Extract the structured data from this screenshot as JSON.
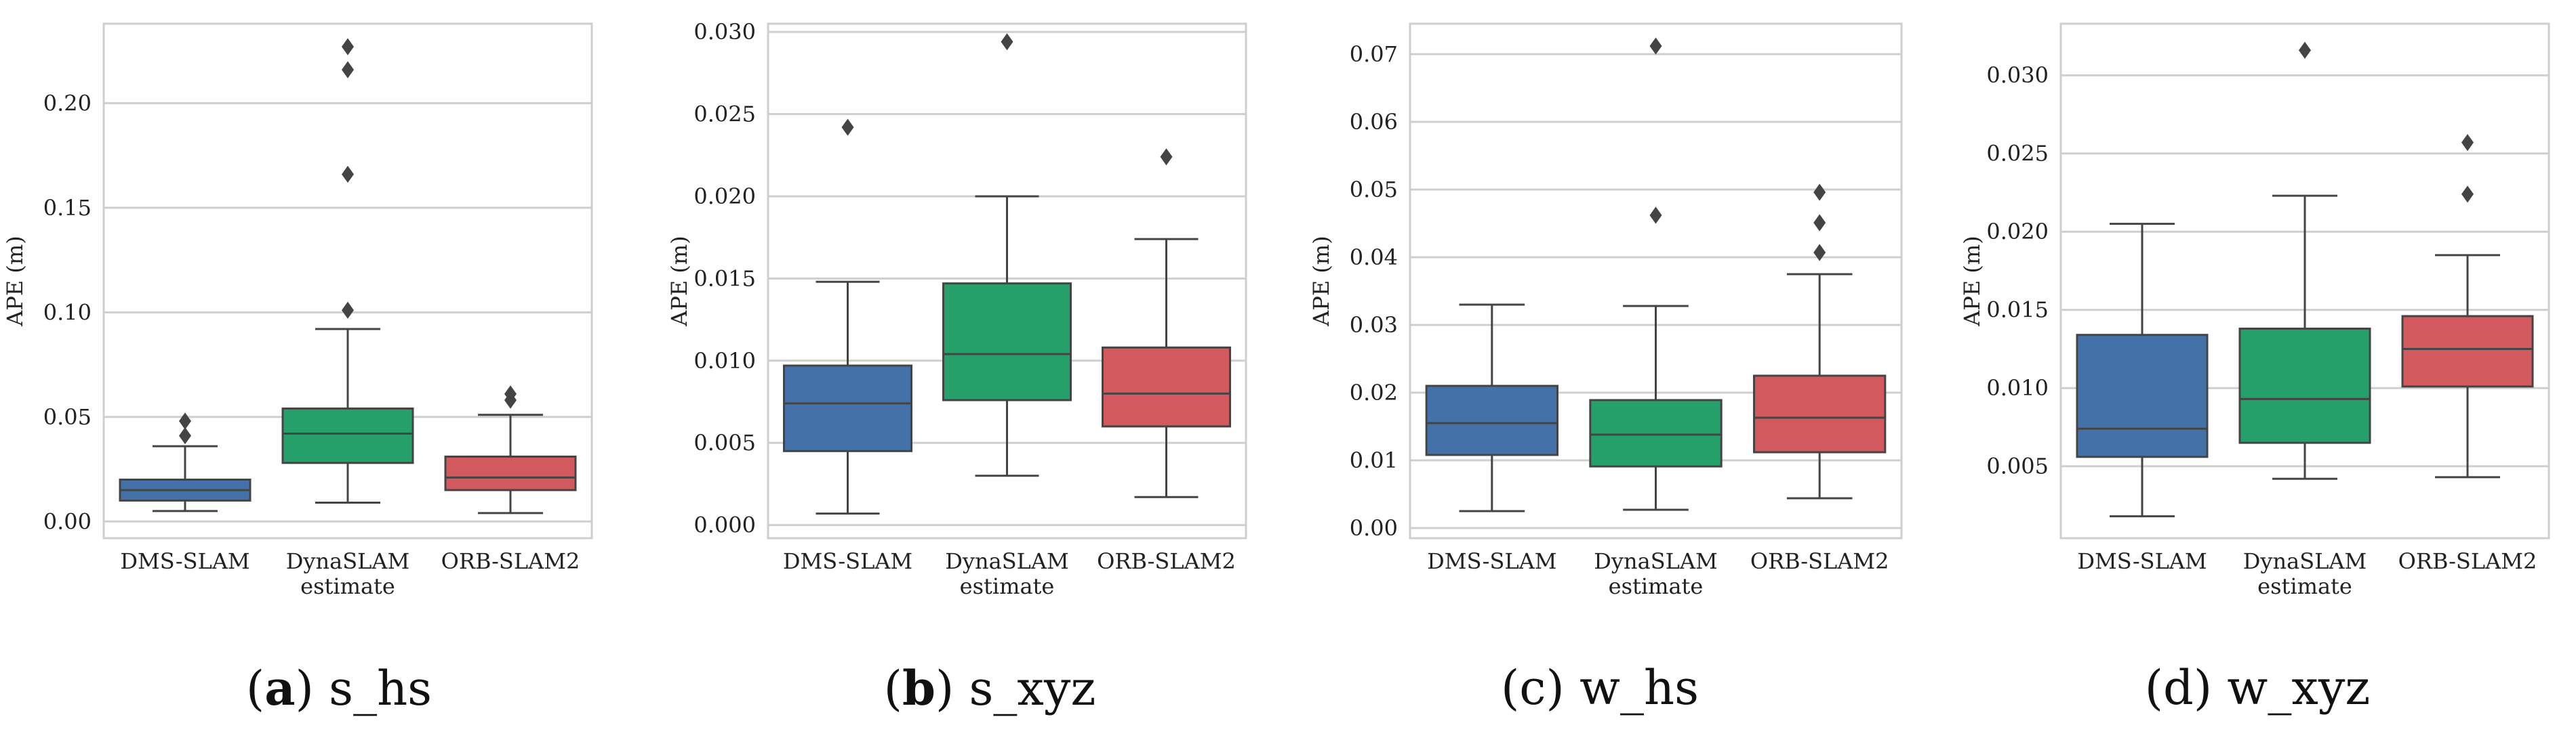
{
  "colors": {
    "DMS-SLAM": "#4472a8",
    "DynaSLAM": "#26a06a",
    "ORB-SLAM2": "#d25a5e"
  },
  "captions": [
    {
      "letter": "a",
      "text": "s_hs",
      "bold": true
    },
    {
      "letter": "b",
      "text": "s_xyz",
      "bold": true
    },
    {
      "letter": "c",
      "text": "w_hs",
      "bold": false
    },
    {
      "letter": "d",
      "text": "w_xyz",
      "bold": false
    }
  ],
  "chart_data": [
    {
      "type": "box",
      "ylabel": "APE (m)",
      "xlabel": "estimate",
      "categories": [
        "DMS-SLAM",
        "DynaSLAM",
        "ORB-SLAM2"
      ],
      "ylim": [
        -0.008,
        0.238
      ],
      "yticks": [
        0.0,
        0.05,
        0.1,
        0.15,
        0.2
      ],
      "ytick_labels": [
        "0.00",
        "0.05",
        "0.10",
        "0.15",
        "0.20"
      ],
      "grid": true,
      "boxes": [
        {
          "name": "DMS-SLAM",
          "whisker_low": 0.005,
          "q1": 0.01,
          "median": 0.015,
          "q3": 0.02,
          "whisker_high": 0.036,
          "outliers": [
            0.041,
            0.048
          ]
        },
        {
          "name": "DynaSLAM",
          "whisker_low": 0.009,
          "q1": 0.028,
          "median": 0.042,
          "q3": 0.054,
          "whisker_high": 0.092,
          "outliers": [
            0.101,
            0.166,
            0.216,
            0.227
          ]
        },
        {
          "name": "ORB-SLAM2",
          "whisker_low": 0.004,
          "q1": 0.015,
          "median": 0.021,
          "q3": 0.031,
          "whisker_high": 0.051,
          "outliers": [
            0.058,
            0.061
          ]
        }
      ]
    },
    {
      "type": "box",
      "ylabel": "APE (m)",
      "xlabel": "estimate",
      "categories": [
        "DMS-SLAM",
        "DynaSLAM",
        "ORB-SLAM2"
      ],
      "ylim": [
        -0.0008,
        0.0305
      ],
      "yticks": [
        0.0,
        0.005,
        0.01,
        0.015,
        0.02,
        0.025,
        0.03
      ],
      "ytick_labels": [
        "0.000",
        "0.005",
        "0.010",
        "0.015",
        "0.020",
        "0.025",
        "0.030"
      ],
      "grid": true,
      "boxes": [
        {
          "name": "DMS-SLAM",
          "whisker_low": 0.0007,
          "q1": 0.0045,
          "median": 0.0074,
          "q3": 0.0097,
          "whisker_high": 0.0148,
          "outliers": [
            0.0242
          ]
        },
        {
          "name": "DynaSLAM",
          "whisker_low": 0.003,
          "q1": 0.0076,
          "median": 0.0104,
          "q3": 0.0147,
          "whisker_high": 0.02,
          "outliers": [
            0.0294
          ]
        },
        {
          "name": "ORB-SLAM2",
          "whisker_low": 0.0017,
          "q1": 0.006,
          "median": 0.008,
          "q3": 0.0108,
          "whisker_high": 0.0174,
          "outliers": [
            0.0224
          ]
        }
      ]
    },
    {
      "type": "box",
      "ylabel": "APE (m)",
      "xlabel": "estimate",
      "categories": [
        "DMS-SLAM",
        "DynaSLAM",
        "ORB-SLAM2"
      ],
      "ylim": [
        -0.0015,
        0.0745
      ],
      "yticks": [
        0.0,
        0.01,
        0.02,
        0.03,
        0.04,
        0.05,
        0.06,
        0.07
      ],
      "ytick_labels": [
        "0.00",
        "0.01",
        "0.02",
        "0.03",
        "0.04",
        "0.05",
        "0.06",
        "0.07"
      ],
      "grid": true,
      "boxes": [
        {
          "name": "DMS-SLAM",
          "whisker_low": 0.0025,
          "q1": 0.0108,
          "median": 0.0155,
          "q3": 0.021,
          "whisker_high": 0.033,
          "outliers": []
        },
        {
          "name": "DynaSLAM",
          "whisker_low": 0.0027,
          "q1": 0.0091,
          "median": 0.0138,
          "q3": 0.0189,
          "whisker_high": 0.0328,
          "outliers": [
            0.0462,
            0.0712
          ]
        },
        {
          "name": "ORB-SLAM2",
          "whisker_low": 0.0044,
          "q1": 0.0112,
          "median": 0.0163,
          "q3": 0.0225,
          "whisker_high": 0.0375,
          "outliers": [
            0.0407,
            0.0451,
            0.0496
          ]
        }
      ]
    },
    {
      "type": "box",
      "ylabel": "APE (m)",
      "xlabel": "estimate",
      "categories": [
        "DMS-SLAM",
        "DynaSLAM",
        "ORB-SLAM2"
      ],
      "ylim": [
        0.0004,
        0.0333
      ],
      "yticks": [
        0.005,
        0.01,
        0.015,
        0.02,
        0.025,
        0.03
      ],
      "ytick_labels": [
        "0.005",
        "0.010",
        "0.015",
        "0.020",
        "0.025",
        "0.030"
      ],
      "grid": true,
      "boxes": [
        {
          "name": "DMS-SLAM",
          "whisker_low": 0.0018,
          "q1": 0.0056,
          "median": 0.0074,
          "q3": 0.0134,
          "whisker_high": 0.0205,
          "outliers": []
        },
        {
          "name": "DynaSLAM",
          "whisker_low": 0.0042,
          "q1": 0.0065,
          "median": 0.0093,
          "q3": 0.0138,
          "whisker_high": 0.0223,
          "outliers": [
            0.0316
          ]
        },
        {
          "name": "ORB-SLAM2",
          "whisker_low": 0.0043,
          "q1": 0.0101,
          "median": 0.0125,
          "q3": 0.0146,
          "whisker_high": 0.0185,
          "outliers": [
            0.0224,
            0.0257
          ]
        }
      ]
    }
  ]
}
